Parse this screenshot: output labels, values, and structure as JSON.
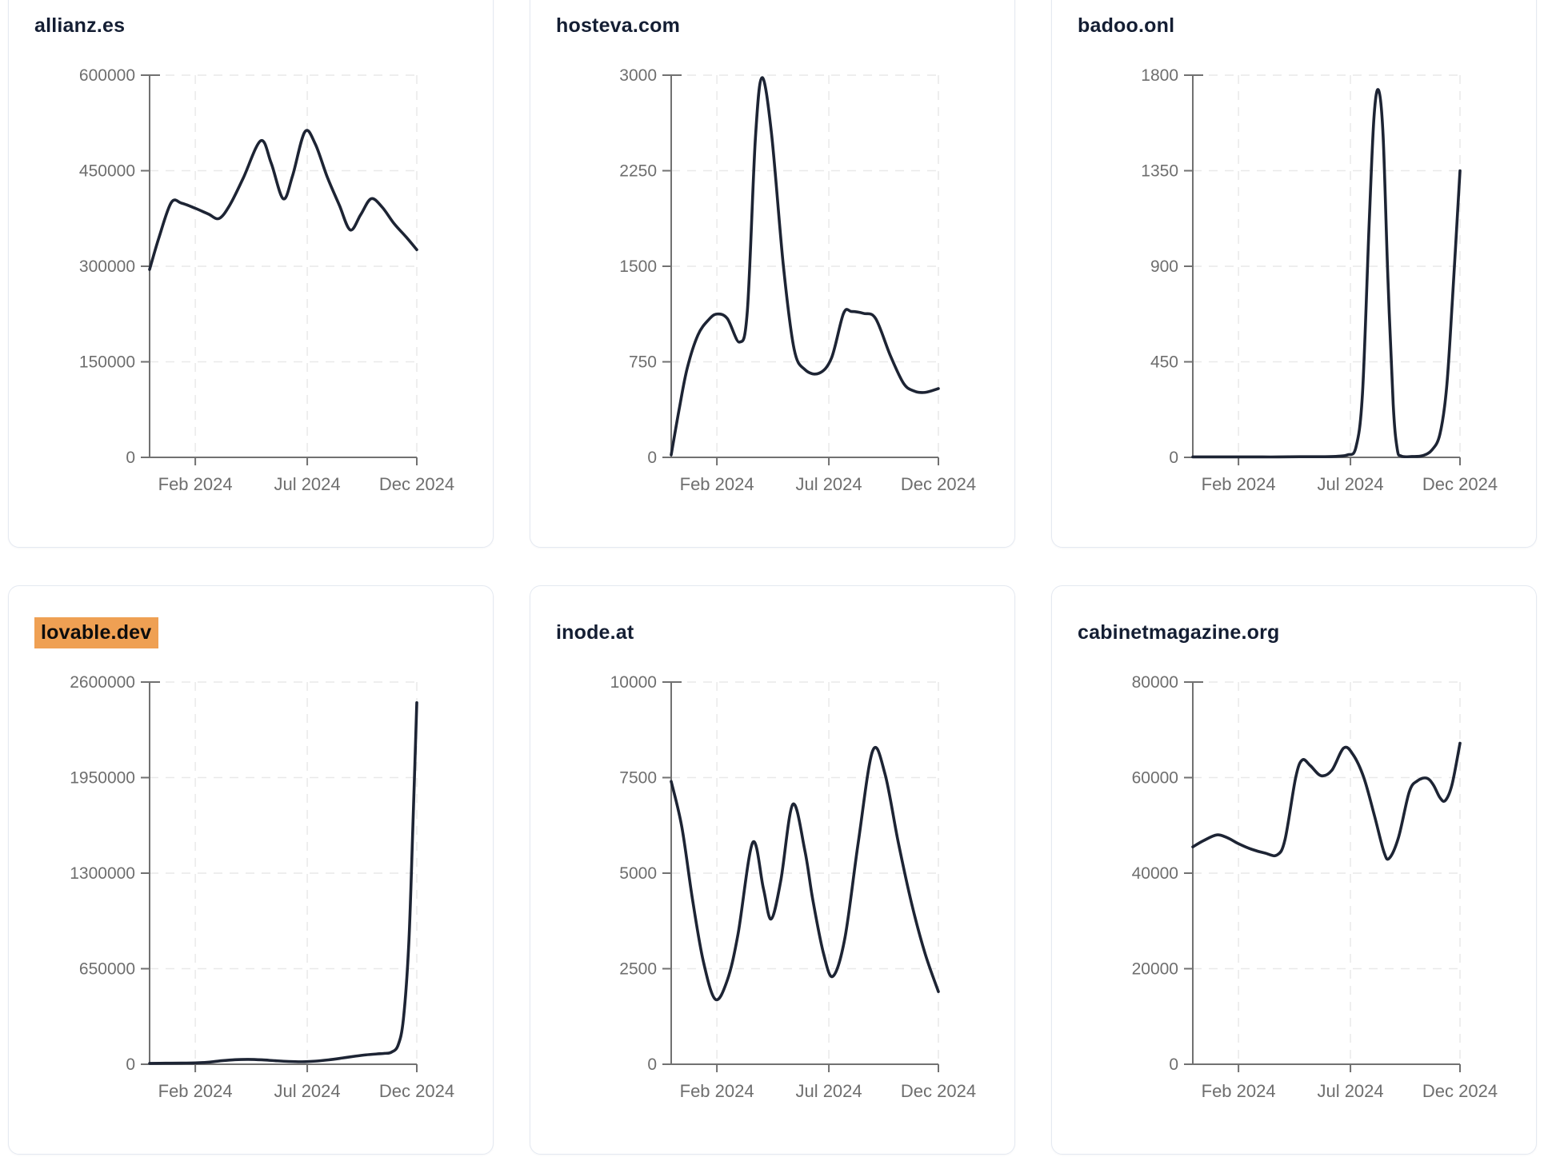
{
  "theme": {
    "page_background": "#ffffff",
    "card_background": "#ffffff",
    "card_border": "#e4e9f1",
    "line_color": "#1d2434",
    "title_color": "#141e33",
    "tick_color": "#6e6e6e",
    "axis_color": "#717171",
    "grid_color": "#e9e9e9",
    "highlight_background": "#efa053",
    "highlight_text": "#0d0d0d"
  },
  "chart_data": [
    {
      "type": "line",
      "title": "allianz.es",
      "highlighted": false,
      "ylim": [
        0,
        600000
      ],
      "y_ticks": [
        0,
        150000,
        300000,
        450000,
        600000
      ],
      "x_ticks": [
        {
          "label": "Feb 2024",
          "pos": 0.171
        },
        {
          "label": "Jul 2024",
          "pos": 0.59
        },
        {
          "label": "Dec 2024",
          "pos": 1.0
        }
      ],
      "grid": true,
      "points": [
        [
          0.0,
          295000
        ],
        [
          0.035,
          345000
        ],
        [
          0.081,
          400000
        ],
        [
          0.12,
          399000
        ],
        [
          0.171,
          391000
        ],
        [
          0.22,
          382000
        ],
        [
          0.26,
          375000
        ],
        [
          0.3,
          396000
        ],
        [
          0.35,
          438000
        ],
        [
          0.416,
          497000
        ],
        [
          0.455,
          462000
        ],
        [
          0.5,
          406000
        ],
        [
          0.535,
          442000
        ],
        [
          0.581,
          511000
        ],
        [
          0.62,
          492000
        ],
        [
          0.665,
          440000
        ],
        [
          0.71,
          396000
        ],
        [
          0.751,
          357000
        ],
        [
          0.79,
          381000
        ],
        [
          0.829,
          406000
        ],
        [
          0.87,
          393000
        ],
        [
          0.915,
          367000
        ],
        [
          0.96,
          346000
        ],
        [
          1.0,
          326000
        ]
      ]
    },
    {
      "type": "line",
      "title": "hosteva.com",
      "highlighted": false,
      "ylim": [
        0,
        3000
      ],
      "y_ticks": [
        0,
        750,
        1500,
        2250,
        3000
      ],
      "x_ticks": [
        {
          "label": "Feb 2024",
          "pos": 0.171
        },
        {
          "label": "Jul 2024",
          "pos": 0.59
        },
        {
          "label": "Dec 2024",
          "pos": 1.0
        }
      ],
      "grid": true,
      "points": [
        [
          0.0,
          20
        ],
        [
          0.03,
          380
        ],
        [
          0.06,
          700
        ],
        [
          0.1,
          960
        ],
        [
          0.14,
          1080
        ],
        [
          0.171,
          1125
        ],
        [
          0.21,
          1090
        ],
        [
          0.256,
          905
        ],
        [
          0.285,
          1150
        ],
        [
          0.315,
          2500
        ],
        [
          0.34,
          2980
        ],
        [
          0.375,
          2550
        ],
        [
          0.42,
          1500
        ],
        [
          0.46,
          850
        ],
        [
          0.5,
          690
        ],
        [
          0.553,
          660
        ],
        [
          0.6,
          780
        ],
        [
          0.645,
          1130
        ],
        [
          0.675,
          1145
        ],
        [
          0.72,
          1130
        ],
        [
          0.765,
          1090
        ],
        [
          0.82,
          800
        ],
        [
          0.87,
          580
        ],
        [
          0.91,
          520
        ],
        [
          0.95,
          510
        ],
        [
          1.0,
          540
        ]
      ]
    },
    {
      "type": "line",
      "title": "badoo.onl",
      "highlighted": false,
      "ylim": [
        0,
        1800
      ],
      "y_ticks": [
        0,
        450,
        900,
        1350,
        1800
      ],
      "x_ticks": [
        {
          "label": "Feb 2024",
          "pos": 0.171
        },
        {
          "label": "Jul 2024",
          "pos": 0.59
        },
        {
          "label": "Dec 2024",
          "pos": 1.0
        }
      ],
      "grid": true,
      "points": [
        [
          0.0,
          2
        ],
        [
          0.08,
          2
        ],
        [
          0.16,
          2
        ],
        [
          0.24,
          2
        ],
        [
          0.32,
          2
        ],
        [
          0.4,
          3
        ],
        [
          0.48,
          3
        ],
        [
          0.54,
          5
        ],
        [
          0.58,
          12
        ],
        [
          0.61,
          45
        ],
        [
          0.635,
          300
        ],
        [
          0.66,
          1100
        ],
        [
          0.678,
          1600
        ],
        [
          0.695,
          1730
        ],
        [
          0.712,
          1520
        ],
        [
          0.73,
          850
        ],
        [
          0.75,
          250
        ],
        [
          0.765,
          40
        ],
        [
          0.78,
          6
        ],
        [
          0.82,
          4
        ],
        [
          0.86,
          8
        ],
        [
          0.895,
          35
        ],
        [
          0.925,
          110
        ],
        [
          0.95,
          330
        ],
        [
          0.972,
          750
        ],
        [
          1.0,
          1350
        ]
      ]
    },
    {
      "type": "line",
      "title": "lovable.dev",
      "highlighted": true,
      "ylim": [
        0,
        2600000
      ],
      "y_ticks": [
        0,
        650000,
        1300000,
        1950000,
        2600000
      ],
      "x_ticks": [
        {
          "label": "Feb 2024",
          "pos": 0.171
        },
        {
          "label": "Jul 2024",
          "pos": 0.59
        },
        {
          "label": "Dec 2024",
          "pos": 1.0
        }
      ],
      "grid": true,
      "points": [
        [
          0.0,
          6000
        ],
        [
          0.06,
          7000
        ],
        [
          0.12,
          8000
        ],
        [
          0.171,
          9000
        ],
        [
          0.22,
          14000
        ],
        [
          0.27,
          24000
        ],
        [
          0.32,
          31000
        ],
        [
          0.37,
          33000
        ],
        [
          0.42,
          30000
        ],
        [
          0.47,
          24000
        ],
        [
          0.52,
          19000
        ],
        [
          0.57,
          17000
        ],
        [
          0.62,
          21000
        ],
        [
          0.67,
          30000
        ],
        [
          0.72,
          42000
        ],
        [
          0.77,
          55000
        ],
        [
          0.81,
          64000
        ],
        [
          0.85,
          70000
        ],
        [
          0.88,
          74000
        ],
        [
          0.905,
          82000
        ],
        [
          0.93,
          130000
        ],
        [
          0.95,
          310000
        ],
        [
          0.97,
          820000
        ],
        [
          0.985,
          1600000
        ],
        [
          1.0,
          2460000
        ]
      ]
    },
    {
      "type": "line",
      "title": "inode.at",
      "highlighted": false,
      "ylim": [
        0,
        10000
      ],
      "y_ticks": [
        0,
        2500,
        5000,
        7500,
        10000
      ],
      "x_ticks": [
        {
          "label": "Feb 2024",
          "pos": 0.171
        },
        {
          "label": "Jul 2024",
          "pos": 0.59
        },
        {
          "label": "Dec 2024",
          "pos": 1.0
        }
      ],
      "grid": true,
      "points": [
        [
          0.0,
          7400
        ],
        [
          0.04,
          6200
        ],
        [
          0.08,
          4300
        ],
        [
          0.12,
          2700
        ],
        [
          0.165,
          1700
        ],
        [
          0.21,
          2200
        ],
        [
          0.25,
          3400
        ],
        [
          0.305,
          5800
        ],
        [
          0.345,
          4600
        ],
        [
          0.374,
          3800
        ],
        [
          0.41,
          4800
        ],
        [
          0.455,
          6800
        ],
        [
          0.5,
          5600
        ],
        [
          0.53,
          4300
        ],
        [
          0.57,
          2900
        ],
        [
          0.605,
          2300
        ],
        [
          0.65,
          3300
        ],
        [
          0.7,
          5800
        ],
        [
          0.754,
          8200
        ],
        [
          0.8,
          7600
        ],
        [
          0.85,
          5800
        ],
        [
          0.9,
          4200
        ],
        [
          0.95,
          2900
        ],
        [
          1.0,
          1900
        ]
      ]
    },
    {
      "type": "line",
      "title": "cabinetmagazine.org",
      "highlighted": false,
      "ylim": [
        0,
        80000
      ],
      "y_ticks": [
        0,
        20000,
        40000,
        60000,
        80000
      ],
      "x_ticks": [
        {
          "label": "Feb 2024",
          "pos": 0.171
        },
        {
          "label": "Jul 2024",
          "pos": 0.59
        },
        {
          "label": "Dec 2024",
          "pos": 1.0
        }
      ],
      "grid": true,
      "points": [
        [
          0.0,
          45500
        ],
        [
          0.04,
          46800
        ],
        [
          0.09,
          48000
        ],
        [
          0.13,
          47400
        ],
        [
          0.17,
          46200
        ],
        [
          0.22,
          45000
        ],
        [
          0.27,
          44200
        ],
        [
          0.315,
          43800
        ],
        [
          0.345,
          47000
        ],
        [
          0.385,
          60000
        ],
        [
          0.41,
          63700
        ],
        [
          0.44,
          62500
        ],
        [
          0.48,
          60400
        ],
        [
          0.52,
          61500
        ],
        [
          0.565,
          66200
        ],
        [
          0.6,
          64800
        ],
        [
          0.64,
          60000
        ],
        [
          0.68,
          52000
        ],
        [
          0.715,
          44500
        ],
        [
          0.735,
          43100
        ],
        [
          0.77,
          47500
        ],
        [
          0.81,
          57000
        ],
        [
          0.84,
          59300
        ],
        [
          0.875,
          59900
        ],
        [
          0.9,
          58500
        ],
        [
          0.925,
          55800
        ],
        [
          0.945,
          55200
        ],
        [
          0.97,
          58500
        ],
        [
          1.0,
          67200
        ]
      ]
    }
  ]
}
